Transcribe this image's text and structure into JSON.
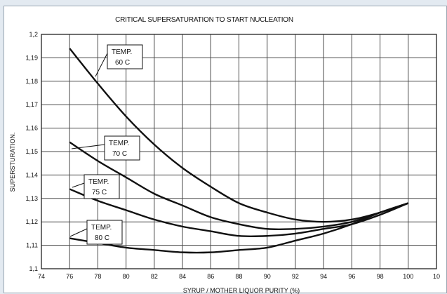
{
  "chart_data": {
    "type": "line",
    "title": "CRITICAL SUPERSATURATION TO START NUCLEATION",
    "xlabel": "SYRUP / MOTHER LIQUOR PURITY (%)",
    "ylabel": "SUPERSTURATION.",
    "xlim": [
      74,
      102
    ],
    "ylim": [
      1.1,
      1.2
    ],
    "x_ticks": [
      "74",
      "76",
      "78",
      "80",
      "82",
      "84",
      "86",
      "88",
      "90",
      "92",
      "94",
      "96",
      "98",
      "100",
      "10"
    ],
    "y_ticks": [
      "1,1",
      "1,11",
      "1,12",
      "1,13",
      "1,14",
      "1,15",
      "1,16",
      "1,17",
      "1,18",
      "1,19",
      "1,2"
    ],
    "grid": true,
    "series": [
      {
        "name": "TEMP. 60 C",
        "label_lines": [
          "TEMP.",
          "60 C"
        ],
        "x": [
          76,
          78,
          80,
          82,
          84,
          86,
          88,
          90,
          92,
          94,
          96,
          98,
          100
        ],
        "y": [
          1.194,
          1.179,
          1.165,
          1.153,
          1.143,
          1.135,
          1.128,
          1.124,
          1.121,
          1.12,
          1.121,
          1.124,
          1.128
        ]
      },
      {
        "name": "TEMP. 70 C",
        "label_lines": [
          "TEMP.",
          "70 C"
        ],
        "x": [
          76,
          78,
          80,
          82,
          84,
          86,
          88,
          90,
          92,
          94,
          96,
          98,
          100
        ],
        "y": [
          1.154,
          1.146,
          1.139,
          1.132,
          1.127,
          1.122,
          1.119,
          1.117,
          1.117,
          1.118,
          1.12,
          1.124,
          1.128
        ]
      },
      {
        "name": "TEMP. 75 C",
        "label_lines": [
          "TEMP.",
          "75 C"
        ],
        "x": [
          76,
          78,
          80,
          82,
          84,
          86,
          88,
          90,
          92,
          94,
          96,
          98,
          100
        ],
        "y": [
          1.134,
          1.129,
          1.125,
          1.121,
          1.118,
          1.116,
          1.114,
          1.114,
          1.115,
          1.117,
          1.119,
          1.123,
          1.128
        ]
      },
      {
        "name": "TEMP. 80 C",
        "label_lines": [
          "TEMP.",
          "80 C"
        ],
        "x": [
          76,
          78,
          80,
          82,
          84,
          86,
          88,
          90,
          92,
          94,
          96,
          98,
          100
        ],
        "y": [
          1.113,
          1.111,
          1.109,
          1.108,
          1.107,
          1.107,
          1.108,
          1.109,
          1.112,
          1.115,
          1.119,
          1.124,
          1.128
        ]
      }
    ]
  }
}
